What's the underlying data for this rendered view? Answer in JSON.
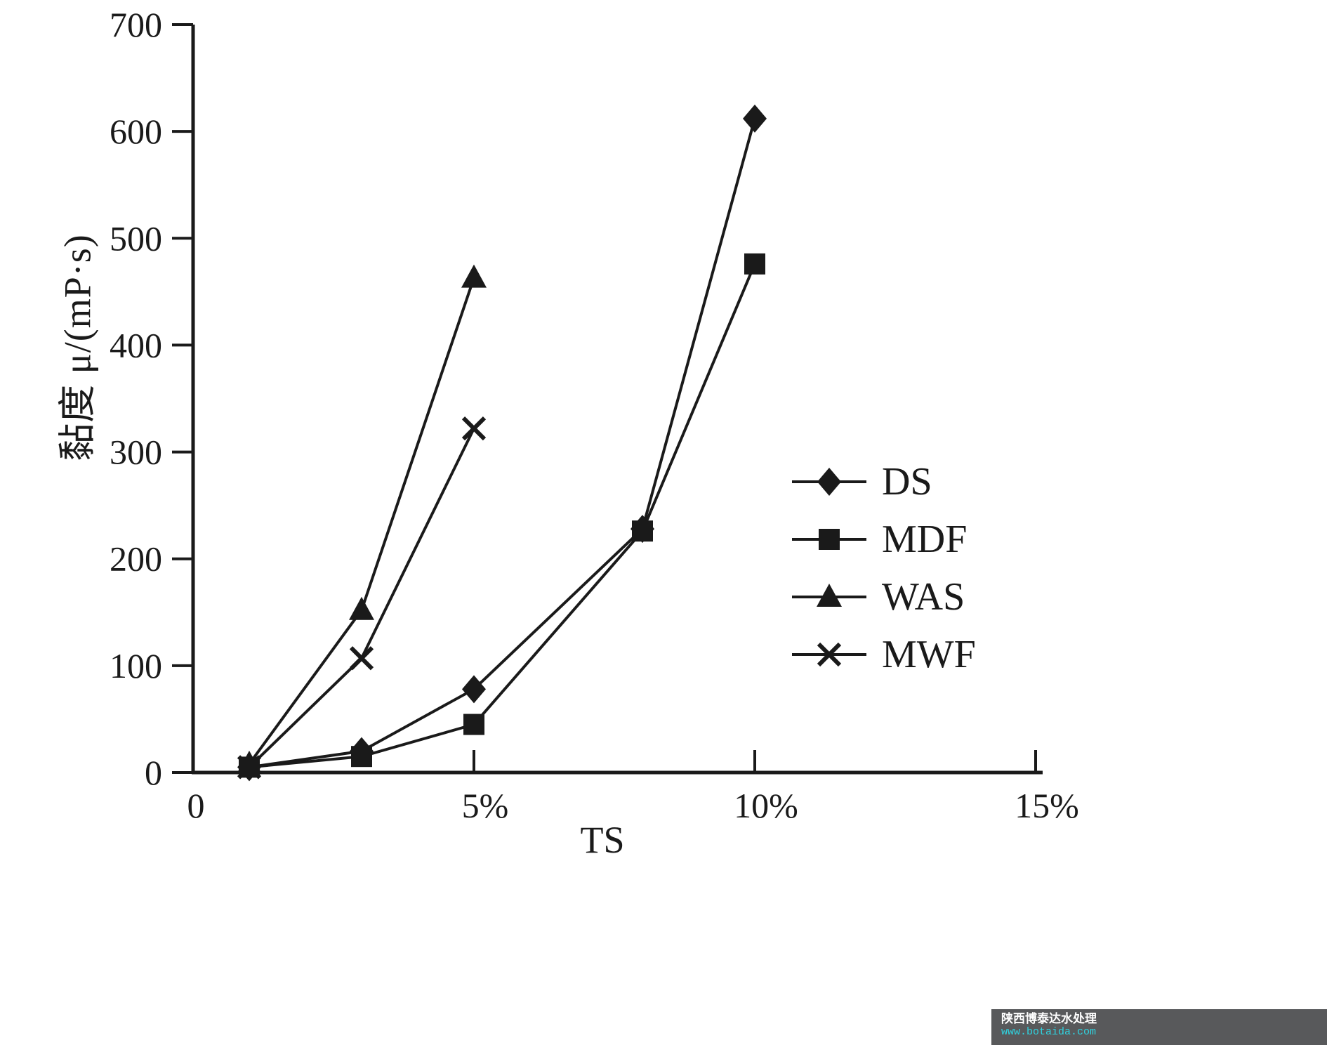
{
  "chart_data": {
    "type": "line",
    "title": "",
    "xlabel": "TS",
    "ylabel": "黏度 μ/(mP·s)",
    "xlim": [
      0,
      15
    ],
    "ylim": [
      0,
      700
    ],
    "grid": false,
    "legend_position": "right-middle",
    "x_ticks": [
      {
        "value": 0,
        "label": "0"
      },
      {
        "value": 5,
        "label": "5%"
      },
      {
        "value": 10,
        "label": "10%"
      },
      {
        "value": 15,
        "label": "15%"
      }
    ],
    "y_ticks": [
      0,
      100,
      200,
      300,
      400,
      500,
      600,
      700
    ],
    "line_color": "#1a1a1a",
    "series": [
      {
        "name": "DS",
        "marker": "diamond",
        "x": [
          1,
          3,
          5,
          8,
          10
        ],
        "y": [
          5,
          20,
          78,
          228,
          612
        ]
      },
      {
        "name": "MDF",
        "marker": "square",
        "x": [
          1,
          3,
          5,
          8,
          10
        ],
        "y": [
          5,
          15,
          45,
          226,
          476
        ]
      },
      {
        "name": "WAS",
        "marker": "triangle",
        "x": [
          1,
          3,
          5
        ],
        "y": [
          8,
          152,
          463
        ]
      },
      {
        "name": "MWF",
        "marker": "x",
        "x": [
          1,
          3,
          5
        ],
        "y": [
          5,
          107,
          322
        ]
      }
    ]
  },
  "watermark": {
    "line1": "陕西博泰达水处理",
    "line2": "www.botaida.com",
    "bg_color": "#58595b",
    "line1_color": "#ffffff",
    "line2_color": "#2fd3e0"
  }
}
